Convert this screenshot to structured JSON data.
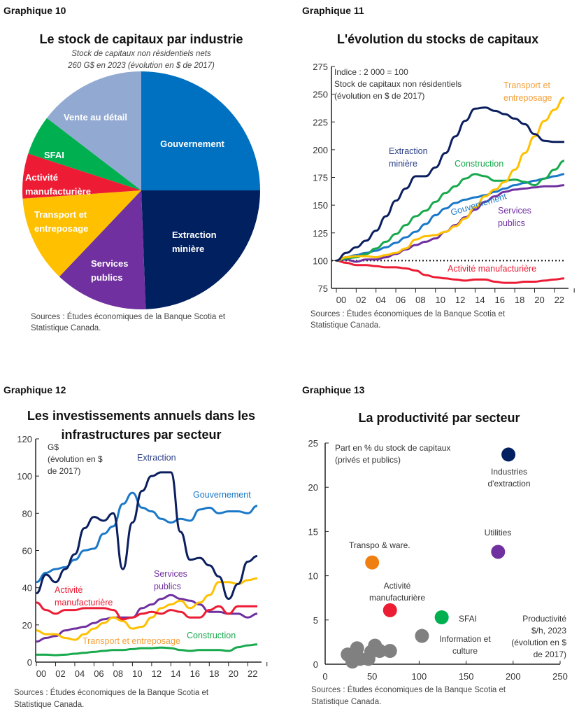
{
  "colors": {
    "navy": "#0b1f5e",
    "blue": "#1a78c8",
    "green": "#17a94c",
    "red": "#ec1c34",
    "yellow": "#ffc000",
    "orange": "#f5a03a",
    "purple": "#7030a0",
    "lightblue": "#92a9d1",
    "grey": "#808080",
    "scatter_orange": "#f07f12"
  },
  "chart_data": [
    {
      "id": "g10",
      "heading": "Graphique 10",
      "type": "pie",
      "title": "Le stock de capitaux par industrie",
      "subtitle": [
        "Stock de capitaux non résidentiels nets",
        "260 G$ en 2023 (évolution en $ de 2017)"
      ],
      "slices": [
        {
          "label": [
            "Gouvernement"
          ],
          "value": 25.0,
          "color": "#0070c0"
        },
        {
          "label": [
            "Extraction",
            "minière"
          ],
          "value": 24.4,
          "color": "#002060"
        },
        {
          "label": [
            "Services",
            "publics"
          ],
          "value": 12.7,
          "color": "#7030a0"
        },
        {
          "label": [
            "Transport et",
            "entreposage"
          ],
          "value": 11.8,
          "color": "#ffc000"
        },
        {
          "label": [
            "Activité",
            "manufacturière"
          ],
          "value": 6.1,
          "color": "#ed1c34"
        },
        {
          "label": [
            "SFAI"
          ],
          "value": 5.4,
          "color": "#00b050"
        },
        {
          "label": [
            "Vente au détail"
          ],
          "value": 14.6,
          "color": "#92a9d1"
        }
      ],
      "source": [
        "Sources : Études économiques de la Banque Scotia et",
        "Statistique Canada."
      ]
    },
    {
      "id": "g11",
      "heading": "Graphique 11",
      "type": "line",
      "title": "L'évolution du stocks de capitaux",
      "annotation": [
        "Indice : 2 000 = 100",
        "Stock de capitaux non résidentiels",
        "(évolution en $ de 2017)"
      ],
      "x": [
        2000,
        2001,
        2002,
        2003,
        2004,
        2005,
        2006,
        2007,
        2008,
        2009,
        2010,
        2011,
        2012,
        2013,
        2014,
        2015,
        2016,
        2017,
        2018,
        2019,
        2020,
        2021,
        2022,
        2023
      ],
      "xticks": [
        "00",
        "02",
        "04",
        "06",
        "08",
        "10",
        "12",
        "14",
        "16",
        "18",
        "20",
        "22"
      ],
      "ylim": [
        75,
        275
      ],
      "yticks": [
        75,
        100,
        125,
        150,
        175,
        200,
        225,
        250,
        275
      ],
      "reference_line": 100,
      "series": [
        {
          "name": [
            "Activité manufacturière"
          ],
          "color": "#ec1c34",
          "values": [
            100,
            98,
            96,
            96,
            95,
            94,
            94,
            93,
            91,
            87,
            85,
            84,
            83,
            82,
            83,
            83,
            81,
            80,
            80,
            81,
            81,
            82,
            83,
            84
          ]
        },
        {
          "name": [
            "Services",
            "publics"
          ],
          "color": "#7030a0",
          "values": [
            100,
            101,
            99,
            101,
            101,
            103,
            106,
            110,
            114,
            117,
            120,
            126,
            132,
            139,
            146,
            153,
            158,
            162,
            164,
            165,
            166,
            167,
            167,
            168
          ]
        },
        {
          "name": [
            "Gouvernement"
          ],
          "color": "#1a78c8",
          "values": [
            100,
            103,
            105,
            107,
            109,
            112,
            116,
            121,
            126,
            133,
            141,
            147,
            152,
            155,
            157,
            159,
            162,
            165,
            168,
            170,
            172,
            174,
            176,
            178
          ]
        },
        {
          "name": [
            "Construction"
          ],
          "color": "#17a94c",
          "values": [
            100,
            102,
            103,
            106,
            111,
            117,
            124,
            132,
            140,
            145,
            153,
            161,
            167,
            174,
            178,
            176,
            172,
            172,
            173,
            171,
            168,
            174,
            182,
            190
          ]
        },
        {
          "name": [
            "Transport et",
            "entreposage"
          ],
          "color": "#ffc000",
          "label_color": "#f5a03a",
          "values": [
            100,
            103,
            104,
            104,
            103,
            105,
            107,
            111,
            119,
            122,
            123,
            126,
            131,
            138,
            148,
            158,
            164,
            171,
            182,
            197,
            212,
            226,
            236,
            247
          ]
        },
        {
          "name": [
            "Extraction",
            "minière"
          ],
          "color": "#0b1f5e",
          "label_color": "#2b3f86",
          "values": [
            100,
            107,
            112,
            118,
            127,
            140,
            154,
            165,
            176,
            176,
            184,
            197,
            212,
            226,
            237,
            238,
            235,
            232,
            228,
            223,
            214,
            208,
            207,
            207
          ]
        }
      ],
      "source": [
        "Sources : Études économiques de la Banque Scotia et",
        "Statistique Canada."
      ]
    },
    {
      "id": "g12",
      "heading": "Graphique 12",
      "type": "line",
      "title": [
        "Les investissements annuels dans les",
        "infrastructures par secteur"
      ],
      "annotation": [
        "G$",
        "(évolution en $",
        "de 2017)"
      ],
      "x": [
        2000,
        2001,
        2002,
        2003,
        2004,
        2005,
        2006,
        2007,
        2008,
        2009,
        2010,
        2011,
        2012,
        2013,
        2014,
        2015,
        2016,
        2017,
        2018,
        2019,
        2020,
        2021,
        2022,
        2023
      ],
      "xticks": [
        "00",
        "02",
        "04",
        "06",
        "08",
        "10",
        "12",
        "14",
        "16",
        "18",
        "20",
        "22"
      ],
      "ylim": [
        0,
        120
      ],
      "yticks": [
        0,
        20,
        40,
        60,
        80,
        100,
        120
      ],
      "series": [
        {
          "name": [
            "Construction"
          ],
          "color": "#17a94c",
          "values": [
            4,
            4,
            3.7,
            4,
            4.5,
            5,
            5.5,
            6,
            6.5,
            6.5,
            7,
            7.5,
            7.5,
            7.8,
            7.5,
            6.5,
            6,
            6.5,
            6.5,
            6.5,
            6,
            8,
            9,
            9.5
          ]
        },
        {
          "name": [
            "Services",
            "publics"
          ],
          "color": "#7030a0",
          "values": [
            11,
            13,
            14,
            17,
            18,
            19,
            21,
            23,
            24,
            24,
            24,
            29,
            31,
            34,
            36,
            34,
            33,
            31,
            27,
            27,
            26,
            26,
            24,
            26
          ]
        },
        {
          "name": [
            "Transport et entreposage"
          ],
          "color": "#ffc000",
          "label_color": "#f5a03a",
          "values": [
            17,
            15,
            15,
            13,
            12,
            15,
            18,
            21,
            24,
            22,
            18,
            19,
            24,
            29,
            31,
            33,
            29,
            32,
            36,
            43,
            43,
            42,
            44,
            45
          ]
        },
        {
          "name": [
            "Activité",
            "manufacturière"
          ],
          "color": "#ec1c34",
          "values": [
            32,
            28,
            26,
            28,
            28,
            29,
            29,
            29,
            28,
            23,
            24,
            26,
            27,
            26,
            28,
            27,
            24,
            24,
            28,
            30,
            26,
            30,
            30,
            30
          ]
        },
        {
          "name": [
            "Gouvernement"
          ],
          "color": "#1a78c8",
          "values": [
            43,
            48,
            50,
            51,
            55,
            60,
            61,
            69,
            73,
            85,
            91,
            83,
            81,
            77,
            75,
            77,
            76,
            82,
            83,
            80,
            81,
            81,
            80,
            84
          ]
        },
        {
          "name": [
            "Extraction"
          ],
          "color": "#0b1f5e",
          "label_color": "#2b3f86",
          "values": [
            37,
            47,
            43,
            50,
            58,
            72,
            78,
            76,
            80,
            50,
            75,
            92,
            100,
            102,
            102,
            70,
            55,
            56,
            52,
            46,
            34,
            42,
            54,
            57
          ]
        }
      ],
      "source": [
        "Sources : Études économiques de la Banque Scotia et",
        "Statistique Canada."
      ]
    },
    {
      "id": "g13",
      "heading": "Graphique 13",
      "type": "scatter",
      "title": "La productivité par secteur",
      "annotation": [
        "Part en % du stock de capitaux",
        "(privés et publics)"
      ],
      "xlabel": [
        "Productivité",
        "$/h, 2023",
        "(évolution en $",
        "de 2017)"
      ],
      "xlim": [
        0,
        250
      ],
      "xticks": [
        0,
        50,
        100,
        150,
        200,
        250
      ],
      "ylim": [
        0,
        25
      ],
      "yticks": [
        0,
        5,
        10,
        15,
        20,
        25
      ],
      "points": [
        {
          "label": [
            "Industries",
            "d'extraction"
          ],
          "x": 195,
          "y": 23.7,
          "color": "#002060"
        },
        {
          "label": [
            "Utilities"
          ],
          "x": 184,
          "y": 12.7,
          "color": "#7030a0"
        },
        {
          "label": [
            "Transpo & ware."
          ],
          "x": 50,
          "y": 11.5,
          "color": "#f07f12"
        },
        {
          "label": [
            "Activité",
            "manufacturière"
          ],
          "x": 69,
          "y": 6.1,
          "color": "#ec1c34"
        },
        {
          "label": [
            "SFAI"
          ],
          "x": 124,
          "y": 5.3,
          "color": "#00b050"
        },
        {
          "label": [
            "Information et",
            "culture"
          ],
          "x": 103,
          "y": 3.2,
          "color": "#808080"
        },
        {
          "x": 24,
          "y": 1.1,
          "color": "#808080"
        },
        {
          "x": 29,
          "y": 0.3,
          "color": "#808080"
        },
        {
          "x": 34,
          "y": 1.8,
          "color": "#808080"
        },
        {
          "x": 37,
          "y": 0.6,
          "color": "#808080"
        },
        {
          "x": 46,
          "y": 0.6,
          "color": "#808080"
        },
        {
          "x": 49,
          "y": 1.4,
          "color": "#808080"
        },
        {
          "x": 53,
          "y": 2.1,
          "color": "#808080"
        },
        {
          "x": 58,
          "y": 1.5,
          "color": "#808080"
        },
        {
          "x": 69,
          "y": 1.5,
          "color": "#808080"
        }
      ],
      "source": [
        "Sources : Études économiques de la Banque Scotia et",
        "Statistique Canada."
      ]
    }
  ]
}
